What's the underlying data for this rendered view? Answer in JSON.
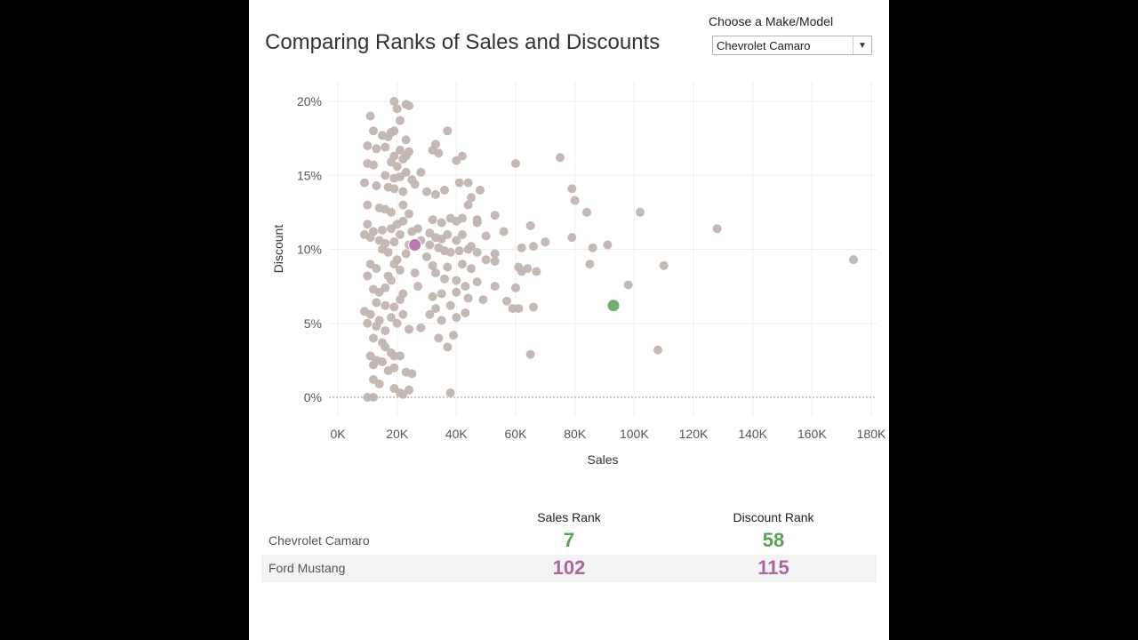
{
  "title": "Comparing Ranks of Sales and Discounts",
  "filter": {
    "label": "Choose a Make/Model",
    "selected": "Chevrolet Camaro",
    "arrow_icon": "triangle-down-icon"
  },
  "colors": {
    "point": "#c2b5b1",
    "highlight_a": "#6fb26b",
    "highlight_b": "#b87aae",
    "grid": "#eeeeee",
    "text": "#555555"
  },
  "chart_data": {
    "type": "scatter",
    "title": "Comparing Ranks of Sales and Discounts",
    "xlabel": "Sales",
    "ylabel": "Discount",
    "xlim": [
      0,
      180000
    ],
    "ylim": [
      0,
      0.2
    ],
    "x_ticks": [
      0,
      20000,
      40000,
      60000,
      80000,
      100000,
      120000,
      140000,
      160000,
      180000
    ],
    "x_tick_labels": [
      "0K",
      "20K",
      "40K",
      "60K",
      "80K",
      "100K",
      "120K",
      "140K",
      "160K",
      "180K"
    ],
    "y_ticks": [
      0,
      0.05,
      0.1,
      0.15,
      0.2
    ],
    "y_tick_labels": [
      "0%",
      "5%",
      "10%",
      "15%",
      "20%"
    ],
    "grid": true,
    "highlighted": [
      {
        "name": "Chevrolet Camaro",
        "x": 93000,
        "y": 0.062,
        "color": "#6fb26b"
      },
      {
        "name": "Ford Mustang",
        "x": 26000,
        "y": 0.103,
        "color": "#b87aae"
      }
    ],
    "points": [
      [
        19000,
        0.2
      ],
      [
        20000,
        0.195
      ],
      [
        23000,
        0.198
      ],
      [
        24000,
        0.197
      ],
      [
        21000,
        0.187
      ],
      [
        11000,
        0.19
      ],
      [
        12000,
        0.18
      ],
      [
        15000,
        0.177
      ],
      [
        17000,
        0.176
      ],
      [
        18000,
        0.179
      ],
      [
        19000,
        0.18
      ],
      [
        23000,
        0.174
      ],
      [
        37000,
        0.18
      ],
      [
        33000,
        0.171
      ],
      [
        10000,
        0.17
      ],
      [
        13000,
        0.168
      ],
      [
        16000,
        0.169
      ],
      [
        21000,
        0.167
      ],
      [
        24000,
        0.166
      ],
      [
        32000,
        0.167
      ],
      [
        34000,
        0.165
      ],
      [
        19000,
        0.163
      ],
      [
        23000,
        0.163
      ],
      [
        10000,
        0.158
      ],
      [
        12000,
        0.157
      ],
      [
        18000,
        0.159
      ],
      [
        20000,
        0.156
      ],
      [
        22000,
        0.161
      ],
      [
        42000,
        0.163
      ],
      [
        40000,
        0.16
      ],
      [
        60000,
        0.158
      ],
      [
        75000,
        0.162
      ],
      [
        16000,
        0.15
      ],
      [
        19000,
        0.148
      ],
      [
        21000,
        0.149
      ],
      [
        23000,
        0.152
      ],
      [
        25000,
        0.147
      ],
      [
        28000,
        0.152
      ],
      [
        9000,
        0.145
      ],
      [
        13000,
        0.143
      ],
      [
        17000,
        0.142
      ],
      [
        19000,
        0.141
      ],
      [
        22000,
        0.139
      ],
      [
        26000,
        0.144
      ],
      [
        30000,
        0.139
      ],
      [
        33000,
        0.137
      ],
      [
        36000,
        0.14
      ],
      [
        41000,
        0.145
      ],
      [
        44000,
        0.145
      ],
      [
        48000,
        0.14
      ],
      [
        79000,
        0.141
      ],
      [
        10000,
        0.13
      ],
      [
        14000,
        0.128
      ],
      [
        16000,
        0.127
      ],
      [
        18000,
        0.125
      ],
      [
        22000,
        0.13
      ],
      [
        24000,
        0.124
      ],
      [
        32000,
        0.12
      ],
      [
        35000,
        0.118
      ],
      [
        38000,
        0.121
      ],
      [
        40000,
        0.119
      ],
      [
        42000,
        0.121
      ],
      [
        44000,
        0.13
      ],
      [
        45000,
        0.135
      ],
      [
        47000,
        0.118
      ],
      [
        53000,
        0.123
      ],
      [
        65000,
        0.116
      ],
      [
        80000,
        0.133
      ],
      [
        84000,
        0.125
      ],
      [
        102000,
        0.125
      ],
      [
        10000,
        0.117
      ],
      [
        12000,
        0.112
      ],
      [
        15000,
        0.113
      ],
      [
        18000,
        0.114
      ],
      [
        20000,
        0.117
      ],
      [
        22000,
        0.119
      ],
      [
        25000,
        0.112
      ],
      [
        27000,
        0.114
      ],
      [
        31000,
        0.111
      ],
      [
        33000,
        0.108
      ],
      [
        35000,
        0.107
      ],
      [
        37000,
        0.11
      ],
      [
        40000,
        0.106
      ],
      [
        42000,
        0.11
      ],
      [
        44000,
        0.1
      ],
      [
        47000,
        0.12
      ],
      [
        50000,
        0.109
      ],
      [
        56000,
        0.112
      ],
      [
        9000,
        0.11
      ],
      [
        11000,
        0.108
      ],
      [
        14000,
        0.106
      ],
      [
        16000,
        0.104
      ],
      [
        19000,
        0.105
      ],
      [
        21000,
        0.11
      ],
      [
        24000,
        0.103
      ],
      [
        28000,
        0.106
      ],
      [
        31000,
        0.103
      ],
      [
        34000,
        0.101
      ],
      [
        36000,
        0.099
      ],
      [
        38000,
        0.098
      ],
      [
        41000,
        0.099
      ],
      [
        45000,
        0.102
      ],
      [
        47000,
        0.098
      ],
      [
        53000,
        0.097
      ],
      [
        62000,
        0.101
      ],
      [
        66000,
        0.102
      ],
      [
        70000,
        0.105
      ],
      [
        79000,
        0.108
      ],
      [
        86000,
        0.101
      ],
      [
        91000,
        0.103
      ],
      [
        128000,
        0.114
      ],
      [
        15000,
        0.1
      ],
      [
        17000,
        0.098
      ],
      [
        20000,
        0.093
      ],
      [
        23000,
        0.097
      ],
      [
        30000,
        0.095
      ],
      [
        32000,
        0.089
      ],
      [
        37000,
        0.088
      ],
      [
        42000,
        0.09
      ],
      [
        45000,
        0.087
      ],
      [
        50000,
        0.093
      ],
      [
        53000,
        0.092
      ],
      [
        61000,
        0.088
      ],
      [
        64000,
        0.087
      ],
      [
        67000,
        0.085
      ],
      [
        85000,
        0.09
      ],
      [
        110000,
        0.089
      ],
      [
        174000,
        0.093
      ],
      [
        11000,
        0.09
      ],
      [
        13000,
        0.087
      ],
      [
        17000,
        0.082
      ],
      [
        19000,
        0.09
      ],
      [
        21000,
        0.086
      ],
      [
        26000,
        0.084
      ],
      [
        33000,
        0.084
      ],
      [
        36000,
        0.08
      ],
      [
        40000,
        0.079
      ],
      [
        43000,
        0.075
      ],
      [
        47000,
        0.078
      ],
      [
        53000,
        0.075
      ],
      [
        60000,
        0.074
      ],
      [
        62000,
        0.085
      ],
      [
        10000,
        0.082
      ],
      [
        12000,
        0.073
      ],
      [
        14000,
        0.071
      ],
      [
        16000,
        0.074
      ],
      [
        18000,
        0.079
      ],
      [
        22000,
        0.07
      ],
      [
        27000,
        0.075
      ],
      [
        32000,
        0.068
      ],
      [
        35000,
        0.07
      ],
      [
        40000,
        0.071
      ],
      [
        44000,
        0.067
      ],
      [
        49000,
        0.066
      ],
      [
        57000,
        0.065
      ],
      [
        98000,
        0.076
      ],
      [
        13000,
        0.064
      ],
      [
        16000,
        0.062
      ],
      [
        19000,
        0.061
      ],
      [
        21000,
        0.066
      ],
      [
        33000,
        0.06
      ],
      [
        38000,
        0.062
      ],
      [
        43000,
        0.057
      ],
      [
        59000,
        0.06
      ],
      [
        61000,
        0.06
      ],
      [
        66000,
        0.061
      ],
      [
        9000,
        0.058
      ],
      [
        11000,
        0.056
      ],
      [
        14000,
        0.052
      ],
      [
        18000,
        0.054
      ],
      [
        22000,
        0.056
      ],
      [
        31000,
        0.056
      ],
      [
        35000,
        0.052
      ],
      [
        40000,
        0.054
      ],
      [
        10000,
        0.05
      ],
      [
        13000,
        0.048
      ],
      [
        16000,
        0.045
      ],
      [
        20000,
        0.05
      ],
      [
        24000,
        0.046
      ],
      [
        28000,
        0.047
      ],
      [
        12000,
        0.04
      ],
      [
        15000,
        0.037
      ],
      [
        18000,
        0.03
      ],
      [
        21000,
        0.028
      ],
      [
        34000,
        0.04
      ],
      [
        37000,
        0.034
      ],
      [
        39000,
        0.042
      ],
      [
        65000,
        0.029
      ],
      [
        108000,
        0.032
      ],
      [
        11000,
        0.028
      ],
      [
        13000,
        0.025
      ],
      [
        15000,
        0.024
      ],
      [
        17000,
        0.018
      ],
      [
        19000,
        0.02
      ],
      [
        23000,
        0.017
      ],
      [
        25000,
        0.016
      ],
      [
        12000,
        0.012
      ],
      [
        14000,
        0.009
      ],
      [
        19000,
        0.006
      ],
      [
        21000,
        0.003
      ],
      [
        24000,
        0.005
      ],
      [
        10000,
        0
      ],
      [
        12000,
        0
      ],
      [
        22000,
        0.002
      ],
      [
        38000,
        0.003
      ],
      [
        12000,
        0.022
      ],
      [
        16000,
        0.034
      ],
      [
        19000,
        0.028
      ]
    ]
  },
  "ranks": {
    "headers": {
      "sales": "Sales Rank",
      "discount": "Discount Rank"
    },
    "rows": [
      {
        "name": "Chevrolet Camaro",
        "sales_rank": "7",
        "discount_rank": "58",
        "color": "#5a9f55"
      },
      {
        "name": "Ford Mustang",
        "sales_rank": "102",
        "discount_rank": "115",
        "color": "#a9679d"
      }
    ]
  }
}
